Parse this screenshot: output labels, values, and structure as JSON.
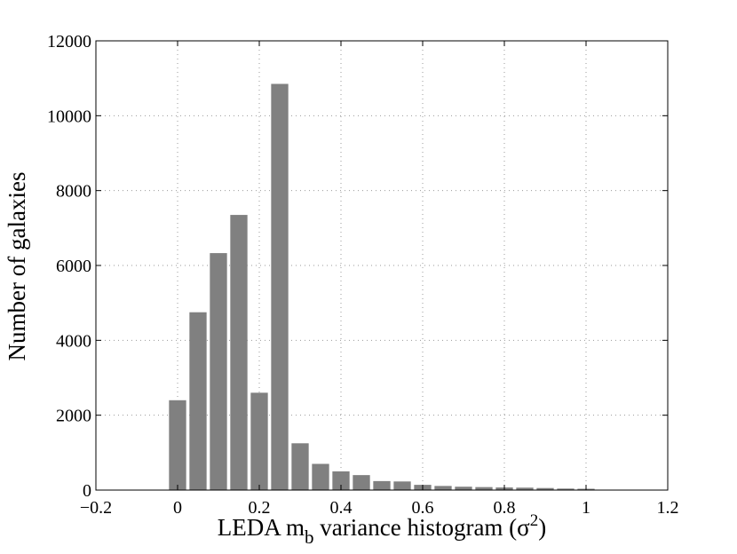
{
  "chart_data": {
    "type": "bar",
    "x": [
      0,
      0.05,
      0.1,
      0.15,
      0.2,
      0.25,
      0.3,
      0.35,
      0.4,
      0.45,
      0.5,
      0.55,
      0.6,
      0.65,
      0.7,
      0.75,
      0.8,
      0.85,
      0.9,
      0.95,
      1.0
    ],
    "values": [
      2400,
      4750,
      6330,
      7350,
      2600,
      10850,
      1250,
      700,
      500,
      400,
      240,
      230,
      140,
      110,
      90,
      80,
      70,
      65,
      55,
      40,
      35
    ],
    "bar_color": "#808080",
    "xlim": [
      -0.2,
      1.2
    ],
    "ylim": [
      0,
      12000
    ],
    "xticks": [
      -0.2,
      0,
      0.2,
      0.4,
      0.6,
      0.8,
      1,
      1.2
    ],
    "xtick_labels": [
      "−0.2",
      "0",
      "0.2",
      "0.4",
      "0.6",
      "0.8",
      "1",
      "1.2"
    ],
    "yticks": [
      0,
      2000,
      4000,
      6000,
      8000,
      10000,
      12000
    ],
    "ytick_labels": [
      "0",
      "2000",
      "4000",
      "6000",
      "8000",
      "10000",
      "12000"
    ],
    "grid": true,
    "xlabel": {
      "part1": "LEDA m",
      "sub": "b",
      "part2": " variance histogram (σ",
      "sup": "2",
      "part3": ")"
    },
    "ylabel": "Number of galaxies"
  }
}
